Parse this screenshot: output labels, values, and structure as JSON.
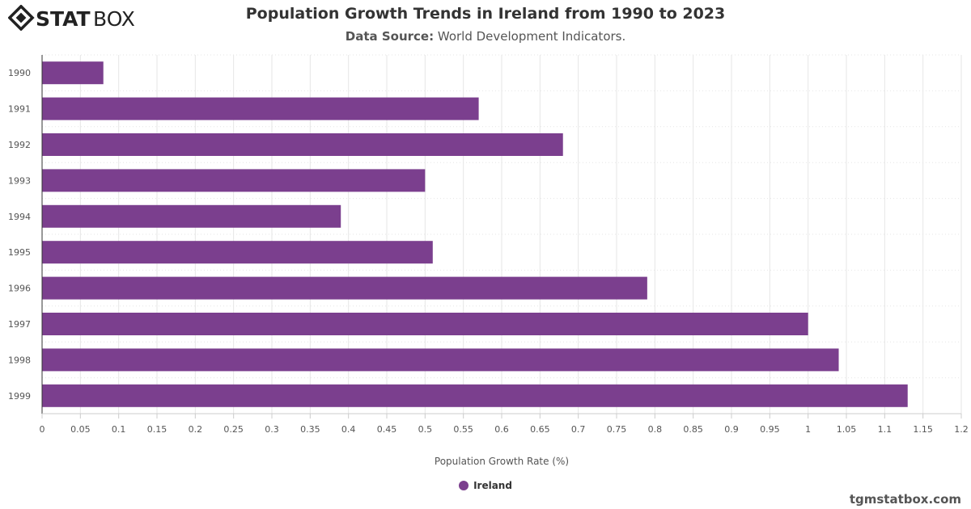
{
  "logo": {
    "text_bold": "STAT",
    "text_light": "BOX"
  },
  "header": {
    "title": "Population Growth Trends in Ireland from 1990 to 2023",
    "source_label": "Data Source:",
    "source_value": "World Development Indicators."
  },
  "credit": "tgmstatbox.com",
  "colors": {
    "bar": "#7b3f8e"
  },
  "chart_data": {
    "type": "bar",
    "orientation": "horizontal",
    "title": "Population Growth Trends in Ireland from 1990 to 2023",
    "xlabel": "Population Growth Rate (%)",
    "ylabel": "",
    "categories": [
      "1990",
      "1991",
      "1992",
      "1993",
      "1994",
      "1995",
      "1996",
      "1997",
      "1998",
      "1999"
    ],
    "series": [
      {
        "name": "Ireland",
        "values": [
          0.08,
          0.57,
          0.68,
          0.5,
          0.39,
          0.51,
          0.79,
          1.0,
          1.04,
          1.13
        ]
      }
    ],
    "xlim": [
      0,
      1.2
    ],
    "xticks": [
      "0",
      "0.05",
      "0.1",
      "0.15",
      "0.2",
      "0.25",
      "0.3",
      "0.35",
      "0.4",
      "0.45",
      "0.5",
      "0.55",
      "0.6",
      "0.65",
      "0.7",
      "0.75",
      "0.8",
      "0.85",
      "0.9",
      "0.95",
      "1",
      "1.05",
      "1.1",
      "1.15",
      "1.2"
    ],
    "grid": true,
    "legend": "bottom-center"
  }
}
